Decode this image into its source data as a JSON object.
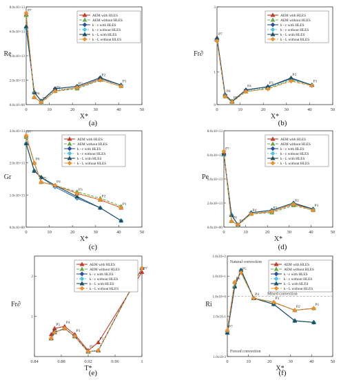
{
  "legend_sets": {
    "six": [
      "AEM with HLES",
      "AEM without HLES",
      "k - ε with HLES",
      "k - ε without HLES",
      "k - L with HLES",
      "k - L without HLES"
    ]
  },
  "series_styles": [
    {
      "color": "#c0392b",
      "dash": "",
      "marker": "triangle"
    },
    {
      "color": "#6aa84f",
      "dash": "4,2",
      "marker": "triangle"
    },
    {
      "color": "#2c4f9e",
      "dash": "",
      "marker": "diamond"
    },
    {
      "color": "#5bc0de",
      "dash": "2,2",
      "marker": "diamond"
    },
    {
      "color": "#1f4e60",
      "dash": "",
      "marker": "triangle"
    },
    {
      "color": "#e69138",
      "dash": "5,2",
      "marker": "diamond"
    }
  ],
  "chart_data": [
    {
      "id": "a",
      "type": "line",
      "caption": "(a)",
      "ylabel": "Re",
      "xlabel": "X*",
      "xlim": [
        0,
        50
      ],
      "ylim": [
        0,
        80000000000000.0
      ],
      "yscale": "linear",
      "xticks": [
        "0",
        "10",
        "20",
        "30",
        "40",
        "50"
      ],
      "yticks": [
        "0.0x10+00",
        "2.0x10+13",
        "4.0x10+13",
        "6.0x10+13",
        "8.0x10+13"
      ],
      "point_labels": [
        "P7",
        "P6",
        "P5",
        "P4",
        "P3",
        "P2",
        "P1"
      ],
      "x": [
        0,
        3.5,
        6.5,
        12.5,
        22,
        32,
        41
      ],
      "series": [
        {
          "name": "AEM with HLES",
          "values": [
            74000000000000.0,
            6000000000000.0,
            2000000000000.0,
            11000000000000.0,
            14000000000000.0,
            21000000000000.0,
            16000000000000.0
          ]
        },
        {
          "name": "AEM without HLES",
          "values": [
            73000000000000.0,
            6000000000000.0,
            2000000000000.0,
            11000000000000.0,
            13000000000000.0,
            20000000000000.0,
            15000000000000.0
          ]
        },
        {
          "name": "k - ε with HLES",
          "values": [
            63000000000000.0,
            10000000000000.0,
            3000000000000.0,
            13000000000000.0,
            15000000000000.0,
            22000000000000.0,
            16000000000000.0
          ]
        },
        {
          "name": "k - ε without HLES",
          "values": [
            62000000000000.0,
            10000000000000.0,
            3000000000000.0,
            12000000000000.0,
            14000000000000.0,
            21000000000000.0,
            16000000000000.0
          ]
        },
        {
          "name": "k - L with HLES",
          "values": [
            64000000000000.0,
            10000000000000.0,
            3000000000000.0,
            13000000000000.0,
            15000000000000.0,
            22000000000000.0,
            16000000000000.0
          ]
        },
        {
          "name": "k - L without HLES",
          "values": [
            75000000000000.0,
            6000000000000.0,
            2000000000000.0,
            11000000000000.0,
            14000000000000.0,
            20000000000000.0,
            15000000000000.0
          ]
        }
      ]
    },
    {
      "id": "b",
      "type": "line",
      "caption": "(b)",
      "ylabel": "Fr∂",
      "xlabel": "X*",
      "xlim": [
        0,
        50
      ],
      "ylim": [
        0,
        3
      ],
      "yscale": "linear",
      "xticks": [
        "0",
        "10",
        "20",
        "30",
        "40",
        "50"
      ],
      "yticks": [
        "0",
        "1",
        "2",
        "3"
      ],
      "point_labels": [
        "P7",
        "P6",
        "P5",
        "P4",
        "P3",
        "P2",
        "P1"
      ],
      "x": [
        0,
        3.5,
        6.5,
        12.5,
        22,
        32,
        41
      ],
      "series": [
        {
          "name": "AEM with HLES",
          "values": [
            2.05,
            0.3,
            0.1,
            0.45,
            0.55,
            0.8,
            0.6
          ]
        },
        {
          "name": "AEM without HLES",
          "values": [
            2.0,
            0.25,
            0.08,
            0.4,
            0.5,
            0.75,
            0.6
          ]
        },
        {
          "name": "k - ε with HLES",
          "values": [
            2.0,
            0.3,
            0.1,
            0.45,
            0.55,
            0.8,
            0.6
          ]
        },
        {
          "name": "k - ε without HLES",
          "values": [
            2.0,
            0.28,
            0.1,
            0.42,
            0.52,
            0.78,
            0.6
          ]
        },
        {
          "name": "k - L with HLES",
          "values": [
            2.05,
            0.3,
            0.1,
            0.45,
            0.55,
            0.82,
            0.6
          ]
        },
        {
          "name": "k - L without HLES",
          "values": [
            1.95,
            0.25,
            0.08,
            0.4,
            0.48,
            0.72,
            0.58
          ]
        }
      ]
    },
    {
      "id": "c",
      "type": "line",
      "caption": "(c)",
      "ylabel": "Gr",
      "xlabel": "X*",
      "xlim": [
        0,
        50
      ],
      "ylim": [
        0,
        30000000000000.0
      ],
      "yscale": "linear",
      "xticks": [
        "0",
        "10",
        "20",
        "30",
        "40",
        "50"
      ],
      "yticks": [
        "0.0x10+00",
        "1.0x10+13",
        "2.0x10+13",
        "3.0x10+13"
      ],
      "point_labels": [
        "P7",
        "P6",
        "P5",
        "P4",
        "P3",
        "P2",
        "P1"
      ],
      "x": [
        0,
        3.5,
        6.5,
        12.5,
        22,
        32,
        41
      ],
      "series": [
        {
          "name": "AEM with HLES",
          "values": [
            28500000000000.0,
            20000000000000.0,
            14000000000000.0,
            13000000000000.0,
            10500000000000.0,
            8500000000000.0,
            6000000000000.0
          ]
        },
        {
          "name": "AEM without HLES",
          "values": [
            28000000000000.0,
            20000000000000.0,
            14000000000000.0,
            13000000000000.0,
            11000000000000.0,
            9000000000000.0,
            6500000000000.0
          ]
        },
        {
          "name": "k - ε with HLES",
          "values": [
            26000000000000.0,
            17500000000000.0,
            15500000000000.0,
            12500000000000.0,
            9000000000000.0,
            6000000000000.0,
            2000000000000.0
          ]
        },
        {
          "name": "k - ε without HLES",
          "values": [
            26000000000000.0,
            17500000000000.0,
            15500000000000.0,
            12500000000000.0,
            9200000000000.0,
            6000000000000.0,
            2000000000000.0
          ]
        },
        {
          "name": "k - L with HLES",
          "values": [
            26000000000000.0,
            17500000000000.0,
            15500000000000.0,
            13000000000000.0,
            9500000000000.0,
            6000000000000.0,
            2000000000000.0
          ]
        },
        {
          "name": "k - L without HLES",
          "values": [
            28500000000000.0,
            20000000000000.0,
            14000000000000.0,
            13000000000000.0,
            10500000000000.0,
            8500000000000.0,
            6000000000000.0
          ]
        }
      ]
    },
    {
      "id": "d",
      "type": "line",
      "caption": "(d)",
      "ylabel": "Pe",
      "xlabel": "X*",
      "xlim": [
        0,
        50
      ],
      "ylim": [
        0,
        80000000000000.0
      ],
      "yscale": "linear",
      "xticks": [
        "0",
        "10",
        "20",
        "30",
        "40",
        "50"
      ],
      "yticks": [
        "0.0x10+00",
        "2.0x10+13",
        "4.0x10+13",
        "6.0x10+13",
        "8.0x10+13"
      ],
      "point_labels": [
        "P7",
        "P6",
        "P5",
        "P4",
        "P3",
        "P2",
        "P1"
      ],
      "x": [
        0,
        3.5,
        6.5,
        12.5,
        22,
        32,
        41
      ],
      "series": [
        {
          "name": "AEM with HLES",
          "values": [
            62000000000000.0,
            5000000000000.0,
            2000000000000.0,
            11000000000000.0,
            13000000000000.0,
            19000000000000.0,
            15000000000000.0
          ]
        },
        {
          "name": "AEM without HLES",
          "values": [
            60000000000000.0,
            5000000000000.0,
            2000000000000.0,
            11000000000000.0,
            12000000000000.0,
            18000000000000.0,
            14000000000000.0
          ]
        },
        {
          "name": "k - ε with HLES",
          "values": [
            60000000000000.0,
            10000000000000.0,
            2000000000000.0,
            12000000000000.0,
            14000000000000.0,
            20000000000000.0,
            15000000000000.0
          ]
        },
        {
          "name": "k - ε without HLES",
          "values": [
            60000000000000.0,
            10000000000000.0,
            2000000000000.0,
            12000000000000.0,
            14000000000000.0,
            20000000000000.0,
            15000000000000.0
          ]
        },
        {
          "name": "k - L with HLES",
          "values": [
            61000000000000.0,
            10000000000000.0,
            2000000000000.0,
            12000000000000.0,
            14000000000000.0,
            20000000000000.0,
            15000000000000.0
          ]
        },
        {
          "name": "k - L without HLES",
          "values": [
            63000000000000.0,
            5000000000000.0,
            2000000000000.0,
            11000000000000.0,
            13000000000000.0,
            19000000000000.0,
            14000000000000.0
          ]
        }
      ]
    },
    {
      "id": "e",
      "type": "line",
      "caption": "(e)",
      "ylabel": "Fr∂",
      "xlabel": "T*",
      "xlim": [
        0.84,
        1.0
      ],
      "ylim": [
        0,
        2.5
      ],
      "yscale": "linear",
      "xticks": [
        "0.84",
        "0.88",
        "0.92",
        "0.96",
        "1"
      ],
      "yticks": [
        "1",
        "2"
      ],
      "point_labels": [
        "P7",
        "P6",
        "P5",
        "P4",
        "P3",
        "P2",
        "P1"
      ],
      "x": [
        1.0,
        0.865,
        0.87,
        0.885,
        0.9,
        0.92,
        0.935
      ],
      "series": [
        {
          "name": "AEM with HLES",
          "values": [
            2.1,
            0.55,
            0.7,
            0.75,
            0.55,
            0.15,
            0.35
          ]
        },
        {
          "name": "AEM without HLES",
          "values": [
            2.2,
            0.45,
            0.6,
            0.7,
            0.5,
            0.12,
            0.15
          ]
        },
        {
          "name": "k - ε with HLES",
          "values": [
            2.2,
            0.45,
            0.6,
            0.7,
            0.5,
            0.12,
            0.15
          ]
        },
        {
          "name": "k - ε without HLES",
          "values": [
            2.2,
            0.45,
            0.6,
            0.7,
            0.5,
            0.12,
            0.15
          ]
        },
        {
          "name": "k - L with HLES",
          "values": [
            2.2,
            0.45,
            0.6,
            0.7,
            0.5,
            0.12,
            0.15
          ]
        },
        {
          "name": "k - L without HLES",
          "values": [
            2.2,
            0.45,
            0.6,
            0.7,
            0.5,
            0.12,
            0.15
          ]
        }
      ]
    },
    {
      "id": "f",
      "type": "line",
      "caption": "(f)",
      "ylabel": "Ri",
      "xlabel": "X*",
      "xlim": [
        0,
        50
      ],
      "ylim": [
        0.001,
        100
      ],
      "yscale": "log",
      "xticks": [
        "0",
        "10",
        "20",
        "30",
        "40",
        "50"
      ],
      "yticks": [
        "1.0x10-3",
        "1.0x10-1",
        "1.0x10+0",
        "1.0x10+1",
        "1.0x10+2"
      ],
      "point_labels": [
        "P7",
        "P6",
        "P5",
        "P4",
        "P3",
        "P2",
        "P1"
      ],
      "x": [
        0,
        3.5,
        6.5,
        12.5,
        22,
        32,
        41
      ],
      "series": [
        {
          "name": "AEM with HLES",
          "values": [
            0.02,
            5,
            15,
            0.8,
            0.5,
            0.2,
            0.25
          ]
        },
        {
          "name": "AEM without HLES",
          "values": [
            0.02,
            5,
            15,
            0.8,
            0.5,
            0.2,
            0.25
          ]
        },
        {
          "name": "k - ε with HLES",
          "values": [
            0.015,
            3,
            20,
            0.8,
            0.4,
            0.06,
            0.05
          ]
        },
        {
          "name": "k - ε without HLES",
          "values": [
            0.015,
            3,
            20,
            0.8,
            0.4,
            0.06,
            0.05
          ]
        },
        {
          "name": "k - L with HLES",
          "values": [
            0.015,
            3,
            20,
            0.8,
            0.4,
            0.06,
            0.05
          ]
        },
        {
          "name": "k - L without HLES",
          "values": [
            0.02,
            5,
            15,
            0.8,
            0.5,
            0.2,
            0.25
          ]
        }
      ],
      "annotations": [
        "Natural convection",
        "Mixed convection",
        "Forced convection"
      ]
    }
  ]
}
